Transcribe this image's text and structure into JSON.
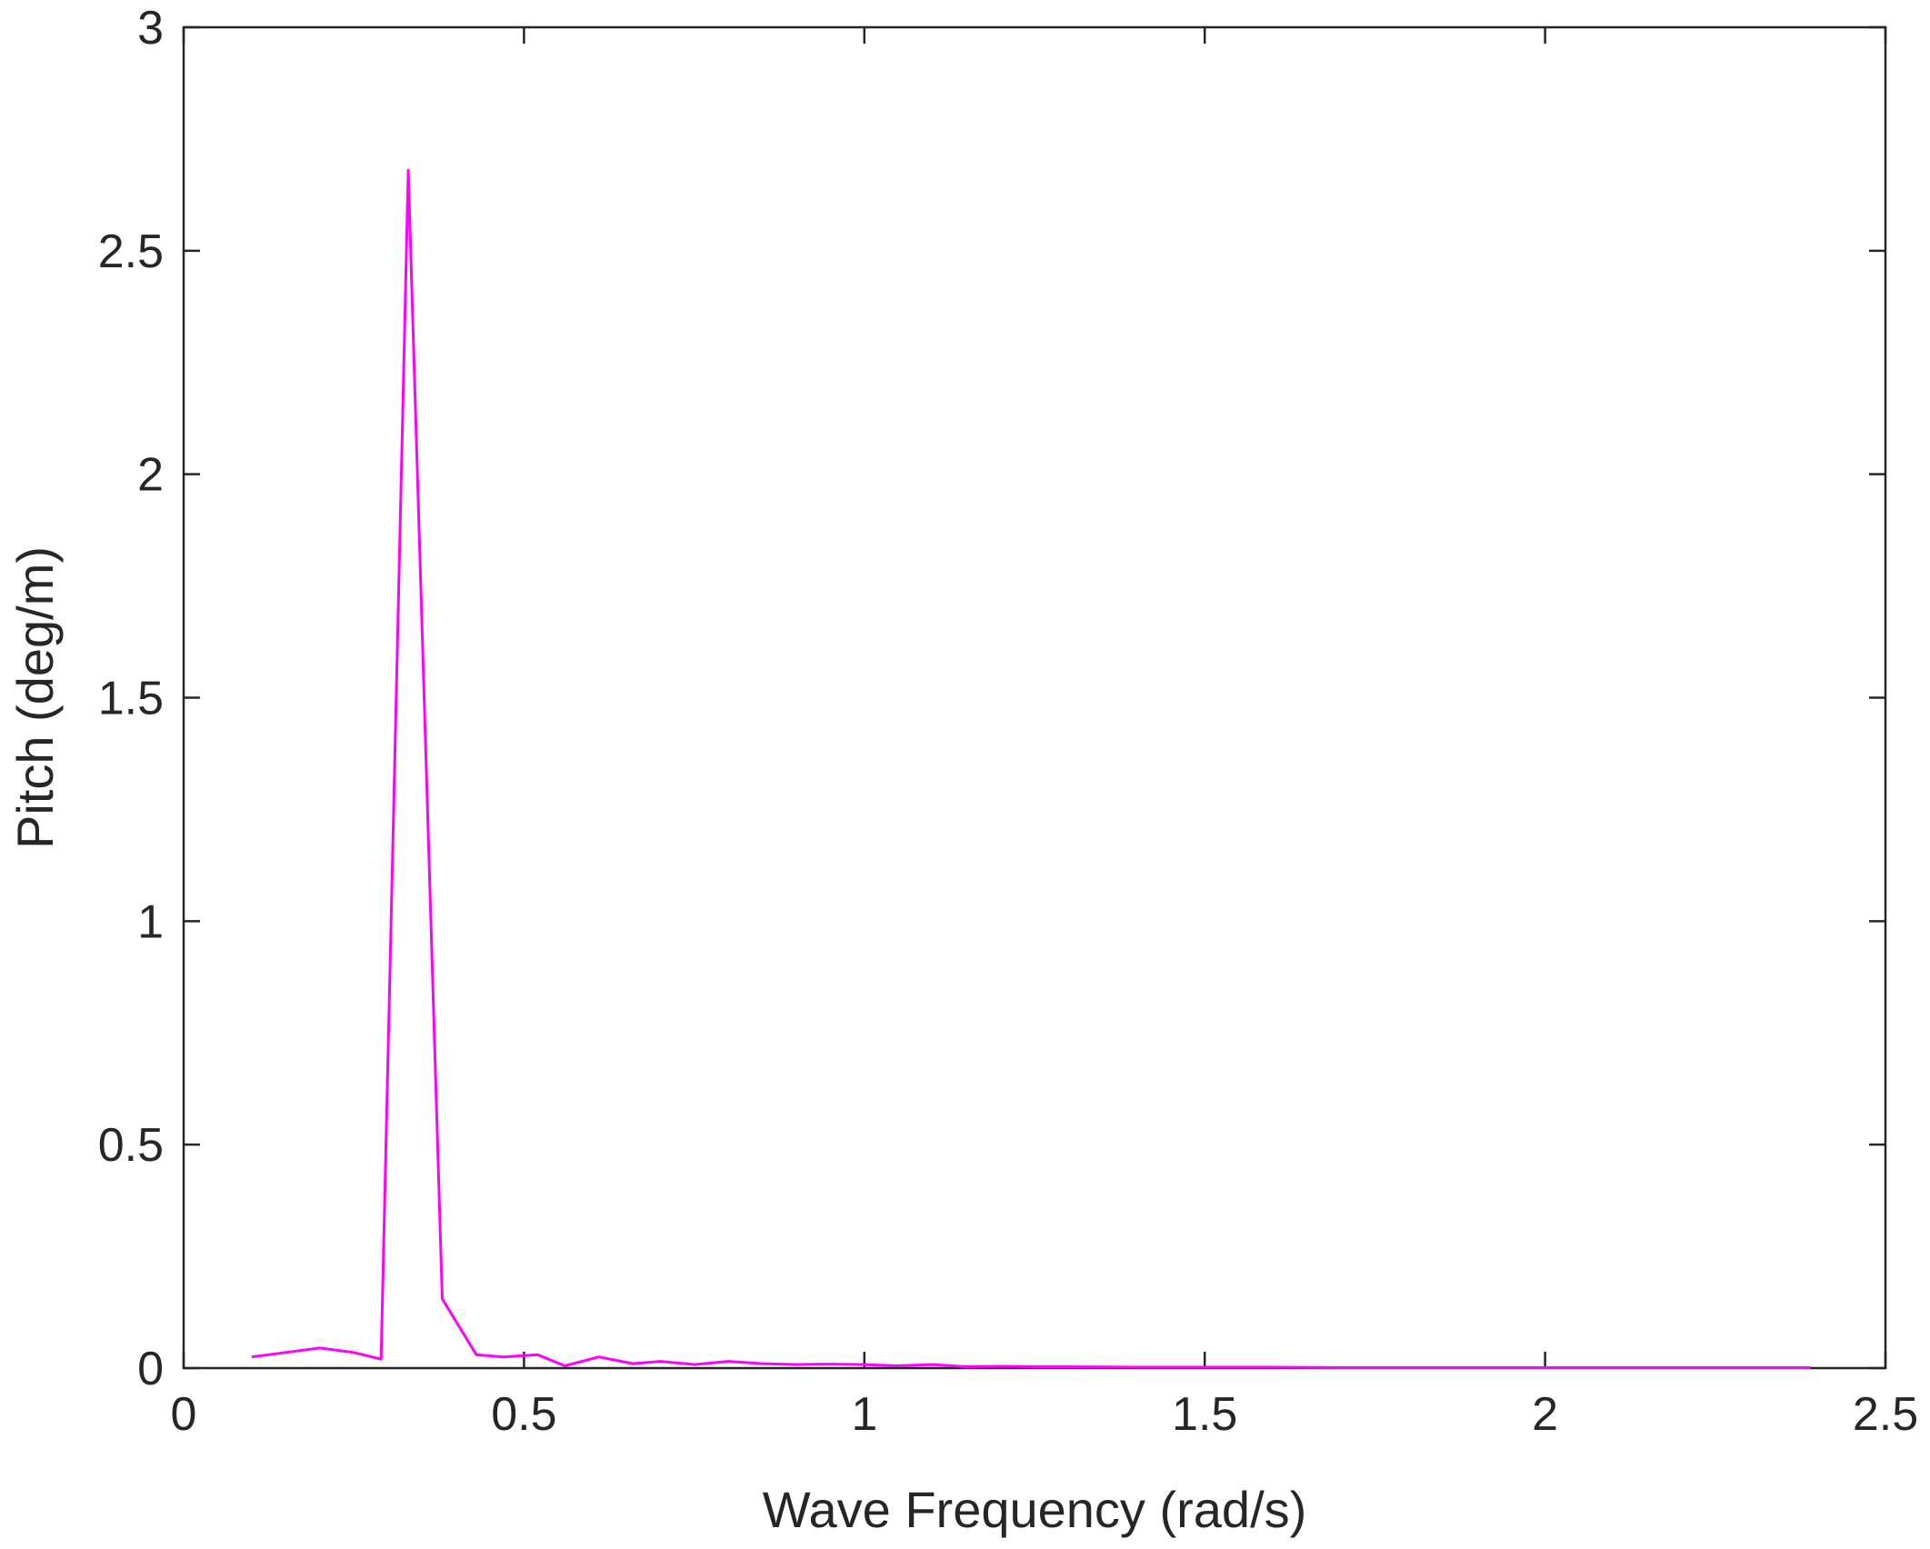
{
  "chart_data": {
    "type": "line",
    "title": "",
    "xlabel": "Wave Frequency (rad/s)",
    "ylabel": "Pitch (deg/m)",
    "xlim": [
      0,
      2.5
    ],
    "ylim": [
      0,
      3
    ],
    "xticks": [
      0,
      0.5,
      1,
      1.5,
      2,
      2.5
    ],
    "xtick_labels": [
      "0",
      "0.5",
      "1",
      "1.5",
      "2",
      "2.5"
    ],
    "yticks": [
      0,
      0.5,
      1,
      1.5,
      2,
      2.5,
      3
    ],
    "ytick_labels": [
      "0",
      "0.5",
      "1",
      "1.5",
      "2",
      "2.5",
      "3"
    ],
    "grid": false,
    "legend": "none",
    "series": [
      {
        "color": "#ff00ff",
        "x": [
          0.1,
          0.15,
          0.2,
          0.25,
          0.29,
          0.33,
          0.38,
          0.43,
          0.47,
          0.52,
          0.56,
          0.61,
          0.66,
          0.7,
          0.75,
          0.8,
          0.85,
          0.9,
          0.95,
          1.0,
          1.05,
          1.1,
          1.15,
          1.2,
          1.25,
          1.3,
          1.4,
          1.5,
          1.6,
          1.7,
          1.8,
          1.9,
          2.0,
          2.1,
          2.2,
          2.3,
          2.39
        ],
        "y": [
          0.025,
          0.035,
          0.045,
          0.035,
          0.02,
          2.68,
          0.155,
          0.03,
          0.025,
          0.03,
          0.005,
          0.025,
          0.01,
          0.015,
          0.008,
          0.015,
          0.01,
          0.008,
          0.009,
          0.008,
          0.005,
          0.008,
          0.003,
          0.004,
          0.003,
          0.003,
          0.002,
          0.002,
          0.002,
          0.001,
          0.001,
          0.001,
          0.001,
          0.001,
          0.001,
          0.001,
          0.001
        ]
      }
    ]
  }
}
